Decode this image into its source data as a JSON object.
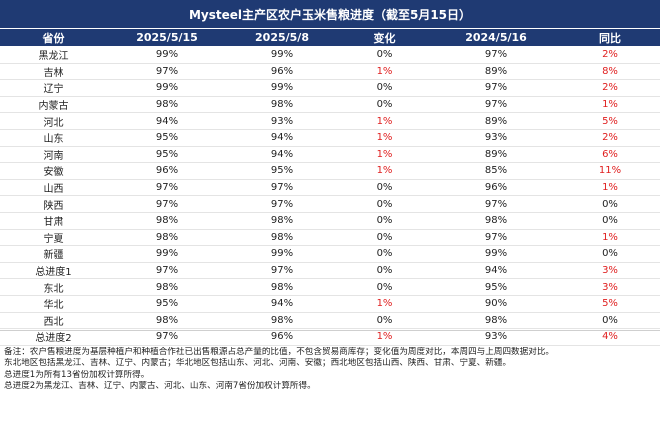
{
  "title": "Mysteel主产区农户玉米售粮进度（截至5月15日）",
  "headers": [
    "省份",
    "2025/5/15",
    "2025/5/8",
    "变化",
    "2024/5/16",
    "同比"
  ],
  "rows": [
    [
      "黑龙江",
      "99%",
      "99%",
      "0%",
      "97%",
      "2%"
    ],
    [
      "吉林",
      "97%",
      "96%",
      "1%",
      "89%",
      "8%"
    ],
    [
      "辽宁",
      "99%",
      "99%",
      "0%",
      "97%",
      "2%"
    ],
    [
      "内蒙古",
      "98%",
      "98%",
      "0%",
      "97%",
      "1%"
    ],
    [
      "河北",
      "94%",
      "93%",
      "1%",
      "89%",
      "5%"
    ],
    [
      "山东",
      "95%",
      "94%",
      "1%",
      "93%",
      "2%"
    ],
    [
      "河南",
      "95%",
      "94%",
      "1%",
      "89%",
      "6%"
    ],
    [
      "安徽",
      "96%",
      "95%",
      "1%",
      "85%",
      "11%"
    ],
    [
      "山西",
      "97%",
      "97%",
      "0%",
      "96%",
      "1%"
    ],
    [
      "陕西",
      "97%",
      "97%",
      "0%",
      "97%",
      "0%"
    ],
    [
      "甘肃",
      "98%",
      "98%",
      "0%",
      "98%",
      "0%"
    ],
    [
      "宁夏",
      "98%",
      "98%",
      "0%",
      "97%",
      "1%"
    ],
    [
      "新疆",
      "99%",
      "99%",
      "0%",
      "99%",
      "0%"
    ],
    [
      "总进度1",
      "97%",
      "97%",
      "0%",
      "94%",
      "3%"
    ],
    [
      "东北",
      "98%",
      "98%",
      "0%",
      "95%",
      "3%"
    ],
    [
      "华北",
      "95%",
      "94%",
      "1%",
      "90%",
      "5%"
    ],
    [
      "西北",
      "98%",
      "98%",
      "0%",
      "98%",
      "0%"
    ],
    [
      "总进度2",
      "97%",
      "96%",
      "1%",
      "93%",
      "4%"
    ]
  ],
  "notes": [
    "备注：农户售粮进度为基层种植户和种植合作社已出售粮源占总产量的比值，不包含贸易商库存；变化值为周度对比，本周四与上周四数据对比。",
    "东北地区包括黑龙江、吉林、辽宁、内蒙古；华北地区包括山东、河北、河南、安徽；西北地区包括山西、陕西、甘肃、宁夏、新疆。",
    "总进度1为所有13省份加权计算所得。",
    "总进度2为黑龙江、吉林、辽宁、内蒙古、河北、山东、河南7省份加权计算所得。"
  ],
  "colors": {
    "header_bg": "#1f3a73",
    "positive": "#e02020"
  }
}
